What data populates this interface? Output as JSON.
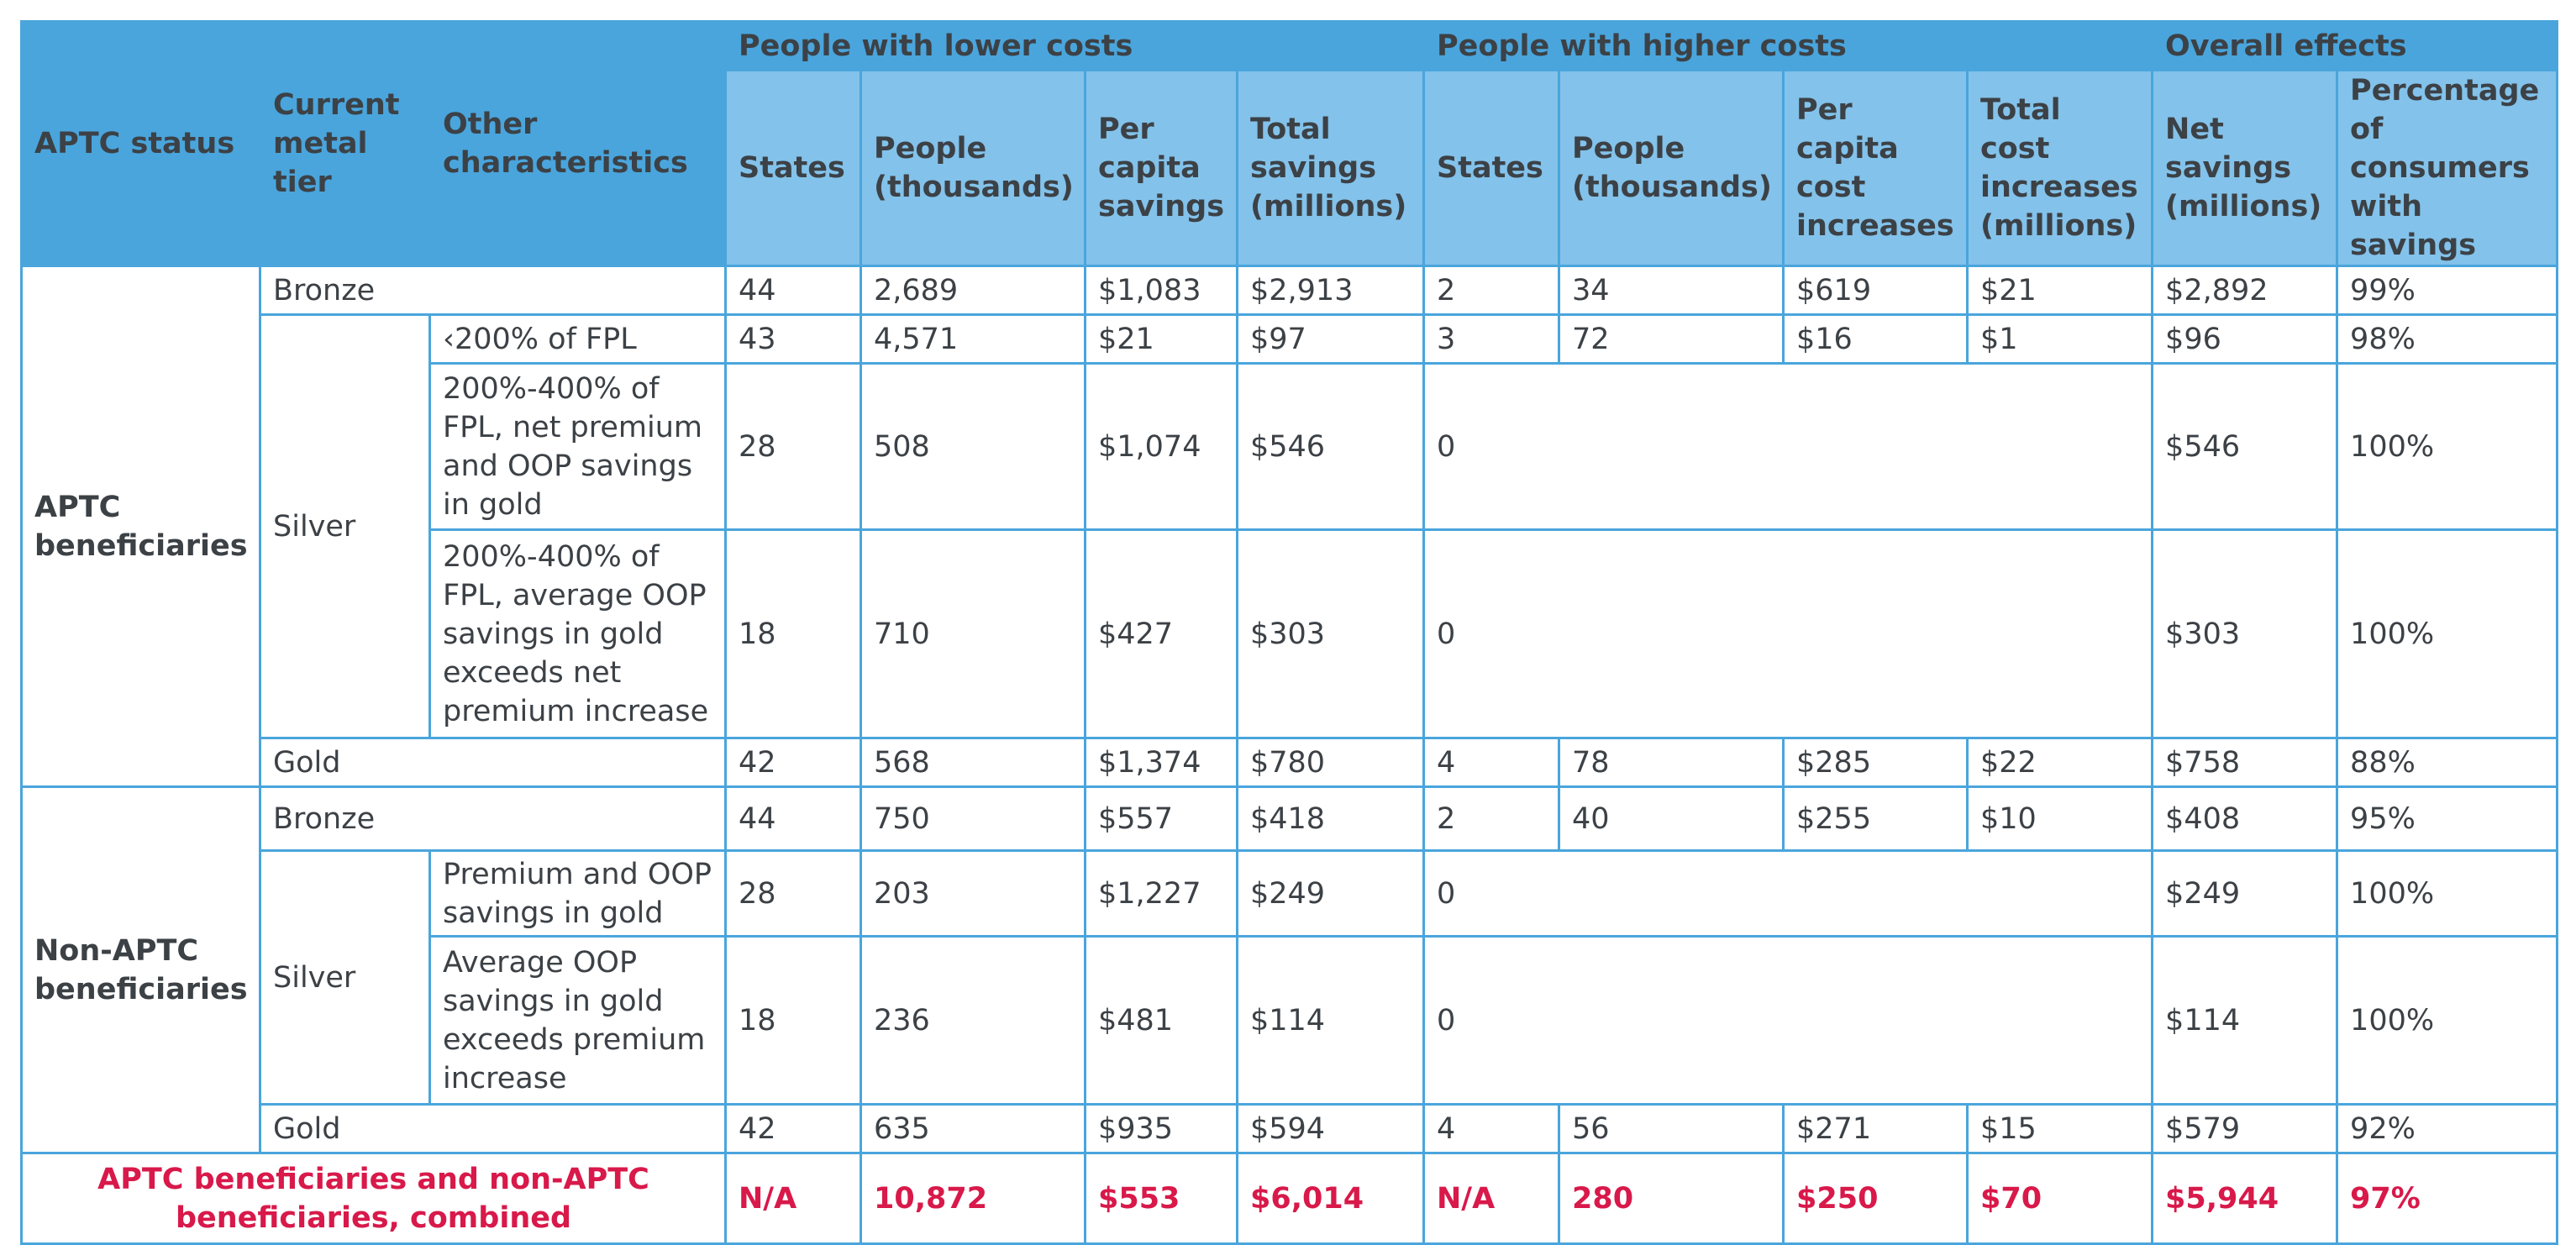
{
  "header": {
    "aptc_status": "APTC status",
    "current_metal_tier": "Current metal tier",
    "other_characteristics": "Other characteristics",
    "lower_group": "People with lower costs",
    "higher_group": "People with higher costs",
    "overall_group": "Overall effects",
    "lower_cols": [
      "States",
      "People (thousands)",
      "Per capita savings",
      "Total savings (millions)"
    ],
    "higher_cols": [
      "States",
      "People (thousands)",
      "Per capita cost increases",
      "Total cost increases (millions)"
    ],
    "overall_cols": [
      "Net savings (millions)",
      "Percentage of consumers with savings"
    ]
  },
  "groups": {
    "aptc": "APTC beneficiaries",
    "non_aptc": "Non-APTC beneficiaries"
  },
  "rows": [
    {
      "tier": "Bronze",
      "other": "",
      "lower": [
        "44",
        "2,689",
        "$1,083",
        "$2,913"
      ],
      "higher": [
        "2",
        "34",
        "$619",
        "$21"
      ],
      "overall": [
        "$2,892",
        "99%"
      ]
    },
    {
      "tier": "Silver",
      "other": "‹200% of FPL",
      "lower": [
        "43",
        "4,571",
        "$21",
        "$97"
      ],
      "higher": [
        "3",
        "72",
        "$16",
        "$1"
      ],
      "overall": [
        "$96",
        "98%"
      ]
    },
    {
      "tier": "",
      "other": "200%-400% of FPL, net premium and OOP savings in gold",
      "lower": [
        "28",
        "508",
        "$1,074",
        "$546"
      ],
      "higher": [
        "0"
      ],
      "overall": [
        "$546",
        "100%"
      ]
    },
    {
      "tier": "",
      "other": "200%-400% of FPL, average OOP savings in gold exceeds net premium increase",
      "lower": [
        "18",
        "710",
        "$427",
        "$303"
      ],
      "higher": [
        "0"
      ],
      "overall": [
        "$303",
        "100%"
      ]
    },
    {
      "tier": "Gold",
      "other": "",
      "lower": [
        "42",
        "568",
        "$1,374",
        "$780"
      ],
      "higher": [
        "4",
        "78",
        "$285",
        "$22"
      ],
      "overall": [
        "$758",
        "88%"
      ]
    },
    {
      "tier": "Bronze",
      "other": "",
      "lower": [
        "44",
        "750",
        "$557",
        "$418"
      ],
      "higher": [
        "2",
        "40",
        "$255",
        "$10"
      ],
      "overall": [
        "$408",
        "95%"
      ]
    },
    {
      "tier": "Silver",
      "other": "Premium and OOP savings in gold",
      "lower": [
        "28",
        "203",
        "$1,227",
        "$249"
      ],
      "higher": [
        "0"
      ],
      "overall": [
        "$249",
        "100%"
      ]
    },
    {
      "tier": "",
      "other": "Average OOP savings in gold exceeds premium increase",
      "lower": [
        "18",
        "236",
        "$481",
        "$114"
      ],
      "higher": [
        "0"
      ],
      "overall": [
        "$114",
        "100%"
      ]
    },
    {
      "tier": "Gold",
      "other": "",
      "lower": [
        "42",
        "635",
        "$935",
        "$594"
      ],
      "higher": [
        "4",
        "56",
        "$271",
        "$15"
      ],
      "overall": [
        "$579",
        "92%"
      ]
    }
  ],
  "total": {
    "label": "APTC beneficiaries and non-APTC beneficiaries, combined",
    "lower": [
      "N/A",
      "10,872",
      "$553",
      "$6,014"
    ],
    "higher": [
      "N/A",
      "280",
      "$250",
      "$70"
    ],
    "overall": [
      "$5,944",
      "97%"
    ]
  },
  "colors": {
    "header": "#4aa5dc",
    "subheader": "#83c2ea",
    "border": "#4aa5dc",
    "total_text": "#d8194a",
    "body_text": "#3c4146"
  }
}
